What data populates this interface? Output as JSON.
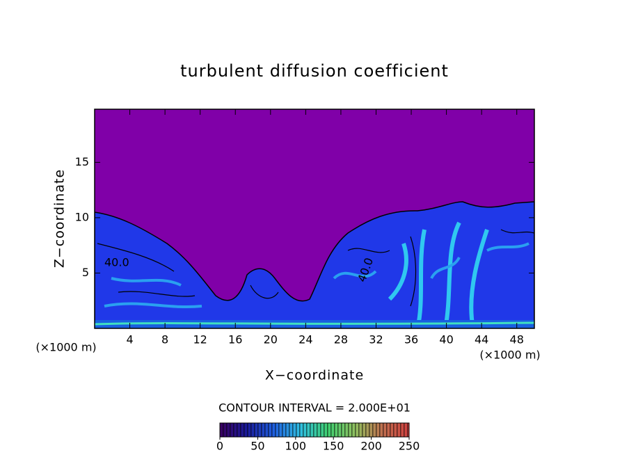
{
  "chart_data": {
    "type": "contour",
    "title": "turbulent diffusion coefficient",
    "x_label": "X−coordinate",
    "y_label": "Z−coordinate",
    "x_unit": "(×1000 m)",
    "y_unit": "(×1000 m)",
    "xlim": [
      0,
      50
    ],
    "xticks": [
      4,
      8,
      12,
      16,
      20,
      24,
      28,
      32,
      36,
      40,
      44,
      48
    ],
    "ylim": [
      0,
      19.8
    ],
    "yticks": [
      5,
      10,
      15
    ],
    "contour_labels": [
      "40.0",
      "40.0"
    ],
    "contour_interval": "CONTOUR INTERVAL = 2.000E+01",
    "colorbar": {
      "lim": [
        0,
        250
      ],
      "ticks": [
        0,
        50,
        100,
        150,
        200,
        250
      ],
      "colors": [
        "#3a0060",
        "#1a1a9a",
        "#2060e0",
        "#30c0e0",
        "#40d070",
        "#90c060",
        "#c07050",
        "#d04040"
      ]
    }
  }
}
